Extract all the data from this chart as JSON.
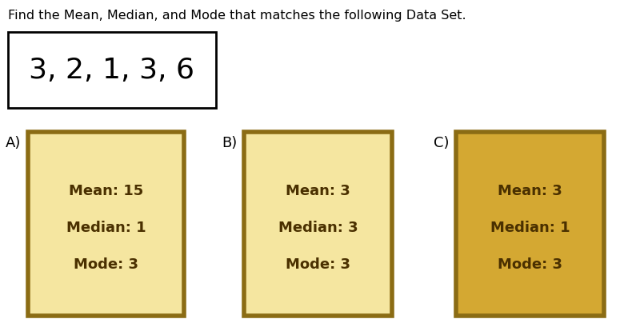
{
  "title": "Find the Mean, Median, and Mode that matches the following Data Set.",
  "dataset_text": "3, 2, 1, 3, 6",
  "background_color": "#ffffff",
  "title_fontsize": 11.5,
  "dataset_fontsize": 26,
  "dataset_box_color": "#ffffff",
  "dataset_box_edgecolor": "#000000",
  "options": [
    {
      "label": "A)",
      "lines": [
        "Mean: 15",
        "Median: 1",
        "Mode: 3"
      ],
      "box_facecolor": "#f5e6a0",
      "box_edgecolor": "#8b6c14",
      "text_color": "#4a3000"
    },
    {
      "label": "B)",
      "lines": [
        "Mean: 3",
        "Median: 3",
        "Mode: 3"
      ],
      "box_facecolor": "#f5e6a0",
      "box_edgecolor": "#8b6c14",
      "text_color": "#4a3000"
    },
    {
      "label": "C)",
      "lines": [
        "Mean: 3",
        "Median: 1",
        "Mode: 3"
      ],
      "box_facecolor": "#d4a832",
      "box_edgecolor": "#8b6c14",
      "text_color": "#4a3000"
    }
  ],
  "option_fontsize": 13,
  "label_fontsize": 13
}
